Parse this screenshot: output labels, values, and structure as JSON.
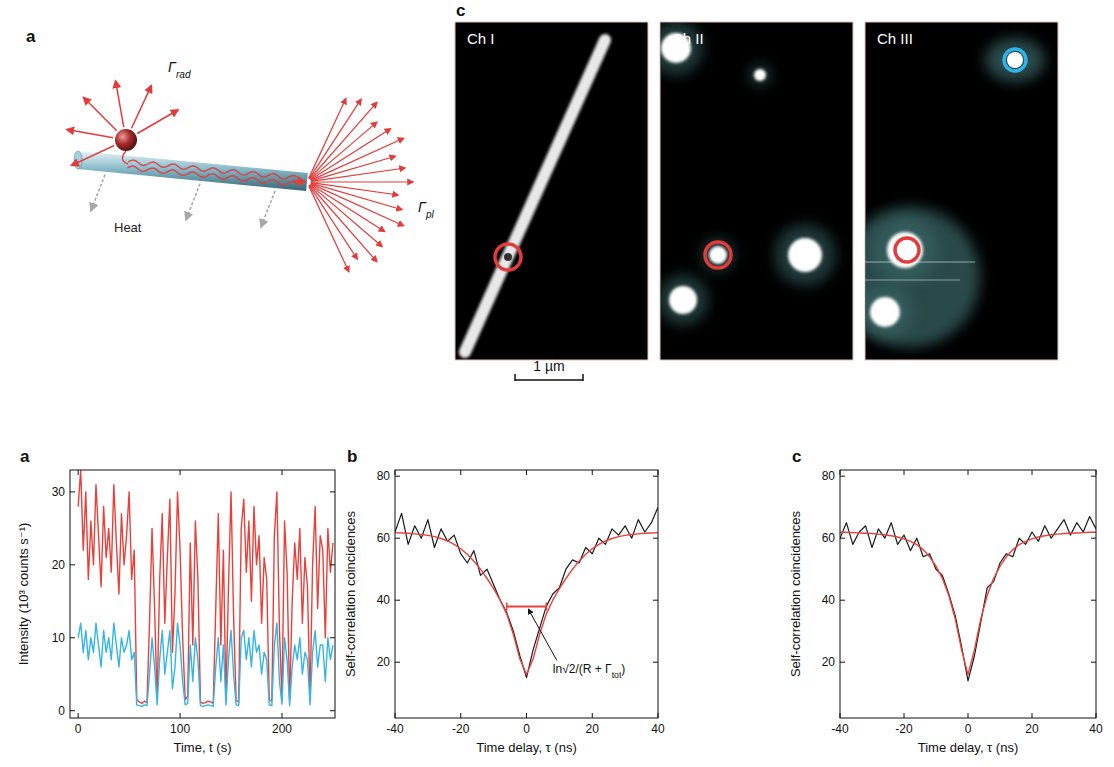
{
  "figure_top": {
    "diagram": {
      "letter": "a",
      "rad_label": {
        "main": "Γ",
        "sub": "rad"
      },
      "pl_label": {
        "main": "Γ",
        "sub": "pl"
      },
      "heat_label": "Heat"
    },
    "images": {
      "letter": "c",
      "channels": [
        "Ch I",
        "Ch II",
        "Ch III"
      ],
      "scale_bar": "1 µm"
    }
  },
  "chart_data": [
    {
      "type": "line",
      "panel_label": "a",
      "x_label": "Time, t (s)",
      "y_label": "Intensity (10³ counts s⁻¹)",
      "x": [
        0,
        2.5,
        5,
        7.5,
        10,
        12.5,
        15,
        17.5,
        20,
        22.5,
        25,
        27.5,
        30,
        32.5,
        35,
        37.5,
        40,
        42.5,
        45,
        47.5,
        50,
        52.5,
        55,
        57.5,
        60,
        62.5,
        65,
        67.5,
        70,
        72.5,
        75,
        77.5,
        80,
        82.5,
        85,
        87.5,
        90,
        92.5,
        95,
        97.5,
        100,
        102.5,
        105,
        107.5,
        110,
        112.5,
        115,
        117.5,
        120,
        122.5,
        125,
        127.5,
        130,
        132.5,
        135,
        137.5,
        140,
        142.5,
        145,
        147.5,
        150,
        152.5,
        155,
        157.5,
        160,
        162.5,
        165,
        167.5,
        170,
        172.5,
        175,
        177.5,
        180,
        182.5,
        185,
        187.5,
        190,
        192.5,
        195,
        197.5,
        200,
        202.5,
        205,
        207.5,
        210,
        212.5,
        215,
        217.5,
        220,
        222.5,
        225,
        227.5,
        230,
        232.5,
        235,
        237.5,
        240,
        242.5,
        245,
        247.5,
        250
      ],
      "series": [
        {
          "color": "#e8413c",
          "values": [
            28,
            33,
            22,
            30,
            18,
            26,
            20,
            31,
            24,
            17,
            28,
            21,
            25,
            19,
            31,
            23,
            16,
            27,
            20,
            24,
            30,
            18,
            22,
            1.5,
            1.2,
            1.0,
            1.3,
            1.1,
            12,
            25,
            14,
            1.4,
            18,
            27,
            12,
            21,
            29,
            8,
            16,
            30,
            22,
            10,
            1.5,
            2,
            23,
            9,
            26,
            18,
            1.2,
            1.0,
            1.1,
            1.3,
            1.2,
            1.0,
            14,
            27,
            9,
            22,
            1.5,
            17,
            30,
            13,
            1.4,
            1.2,
            25,
            29,
            19,
            26,
            15,
            28,
            20,
            24,
            12,
            21,
            18,
            1.5,
            1.3,
            24,
            30,
            11,
            1.6,
            26,
            19,
            1.3,
            15,
            23,
            18,
            25,
            12,
            21,
            17,
            1.4,
            20,
            28,
            14,
            24,
            22,
            10,
            25,
            19,
            23
          ]
        },
        {
          "color": "#35b4e6",
          "values": [
            10,
            12,
            8,
            11,
            7,
            10,
            8,
            12,
            9,
            6,
            11,
            8,
            10,
            7,
            12,
            9,
            6,
            10,
            8,
            9,
            11,
            7,
            8,
            0.8,
            0.7,
            0.6,
            0.8,
            0.7,
            5,
            10,
            6,
            0.8,
            7,
            11,
            5,
            8,
            11,
            3,
            6,
            12,
            9,
            4,
            0.8,
            1,
            9,
            4,
            10,
            7,
            0.7,
            0.6,
            0.7,
            0.8,
            0.7,
            0.6,
            6,
            10,
            4,
            9,
            0.8,
            7,
            11,
            5,
            0.8,
            0.7,
            10,
            11,
            7,
            10,
            6,
            11,
            8,
            9,
            5,
            8,
            7,
            0.8,
            0.7,
            9,
            12,
            4,
            0.9,
            10,
            7,
            0.7,
            6,
            9,
            7,
            10,
            5,
            8,
            7,
            0.8,
            8,
            11,
            6,
            9,
            9,
            4,
            10,
            7,
            9
          ]
        }
      ],
      "xlim": [
        -8,
        252
      ],
      "ylim": [
        -1,
        33
      ],
      "xticks": [
        0,
        100,
        200
      ],
      "yticks": [
        0,
        10,
        20,
        30
      ]
    },
    {
      "type": "line",
      "panel_label": "b",
      "x_label": "Time delay, τ (ns)",
      "y_label": "Self-correlation coincidences",
      "x": [
        -40,
        -38,
        -36,
        -34,
        -32,
        -30,
        -28,
        -26,
        -24,
        -22,
        -20,
        -18,
        -16,
        -14,
        -12,
        -10,
        -8,
        -6,
        -4,
        -2,
        0,
        2,
        4,
        6,
        8,
        10,
        12,
        14,
        16,
        18,
        20,
        22,
        24,
        26,
        28,
        30,
        32,
        34,
        36,
        38,
        40
      ],
      "series": [
        {
          "color": "#1a1a1a",
          "values": [
            62,
            68,
            58,
            64,
            60,
            66,
            57,
            63,
            59,
            61,
            55,
            52,
            56,
            48,
            50,
            45,
            40,
            36,
            30,
            22,
            15,
            24,
            31,
            38,
            42,
            44,
            50,
            53,
            52,
            57,
            55,
            60,
            58,
            63,
            61,
            64,
            60,
            66,
            62,
            65,
            70
          ]
        },
        {
          "color": "#e8413c",
          "values": [
            61.8,
            61.7,
            61.6,
            61.4,
            61.2,
            60.9,
            60.5,
            59.9,
            59.1,
            58,
            56.6,
            54.8,
            52.6,
            50,
            47,
            43.7,
            40,
            35.5,
            29,
            21,
            16,
            21,
            29,
            35.5,
            40,
            43.7,
            47,
            50,
            52.6,
            54.8,
            56.6,
            58,
            59.1,
            59.9,
            60.5,
            60.9,
            61.2,
            61.4,
            61.6,
            61.7,
            61.8
          ]
        }
      ],
      "annotation": {
        "text": "ln√2/(R + Γ",
        "sub": "tot",
        "after": ")",
        "bar_x": [
          -6,
          6
        ],
        "bar_y": 38
      },
      "xlim": [
        -40,
        40
      ],
      "ylim": [
        2,
        82
      ],
      "xticks": [
        -40,
        -20,
        0,
        20,
        40
      ],
      "yticks": [
        20,
        40,
        60,
        80
      ]
    },
    {
      "type": "line",
      "panel_label": "c",
      "x_label": "Time delay, τ (ns)",
      "y_label": "Self-correlation coincidences",
      "x": [
        -40,
        -38,
        -36,
        -34,
        -32,
        -30,
        -28,
        -26,
        -24,
        -22,
        -20,
        -18,
        -16,
        -14,
        -12,
        -10,
        -8,
        -6,
        -4,
        -2,
        0,
        2,
        4,
        6,
        8,
        10,
        12,
        14,
        16,
        18,
        20,
        22,
        24,
        26,
        28,
        30,
        32,
        34,
        36,
        38,
        40
      ],
      "series": [
        {
          "color": "#1a1a1a",
          "values": [
            60,
            65,
            58,
            62,
            64,
            57,
            63,
            60,
            65,
            58,
            61,
            56,
            60,
            54,
            55,
            50,
            48,
            42,
            35,
            25,
            14,
            22,
            33,
            44,
            46,
            52,
            55,
            54,
            60,
            58,
            62,
            59,
            64,
            60,
            63,
            66,
            61,
            65,
            62,
            67,
            63
          ]
        },
        {
          "color": "#e8413c",
          "values": [
            61.9,
            61.9,
            61.8,
            61.7,
            61.6,
            61.5,
            61.3,
            61.1,
            60.8,
            60.4,
            59.8,
            59,
            57.9,
            56.3,
            54,
            51,
            47,
            41.5,
            34,
            24,
            16,
            24,
            34,
            41.5,
            47,
            51,
            54,
            56.3,
            57.9,
            59,
            59.8,
            60.4,
            60.8,
            61.1,
            61.3,
            61.5,
            61.6,
            61.7,
            61.8,
            61.9,
            61.9
          ]
        }
      ],
      "xlim": [
        -40,
        40
      ],
      "ylim": [
        2,
        82
      ],
      "xticks": [
        -40,
        -20,
        0,
        20,
        40
      ],
      "yticks": [
        20,
        40,
        60,
        80
      ]
    }
  ]
}
